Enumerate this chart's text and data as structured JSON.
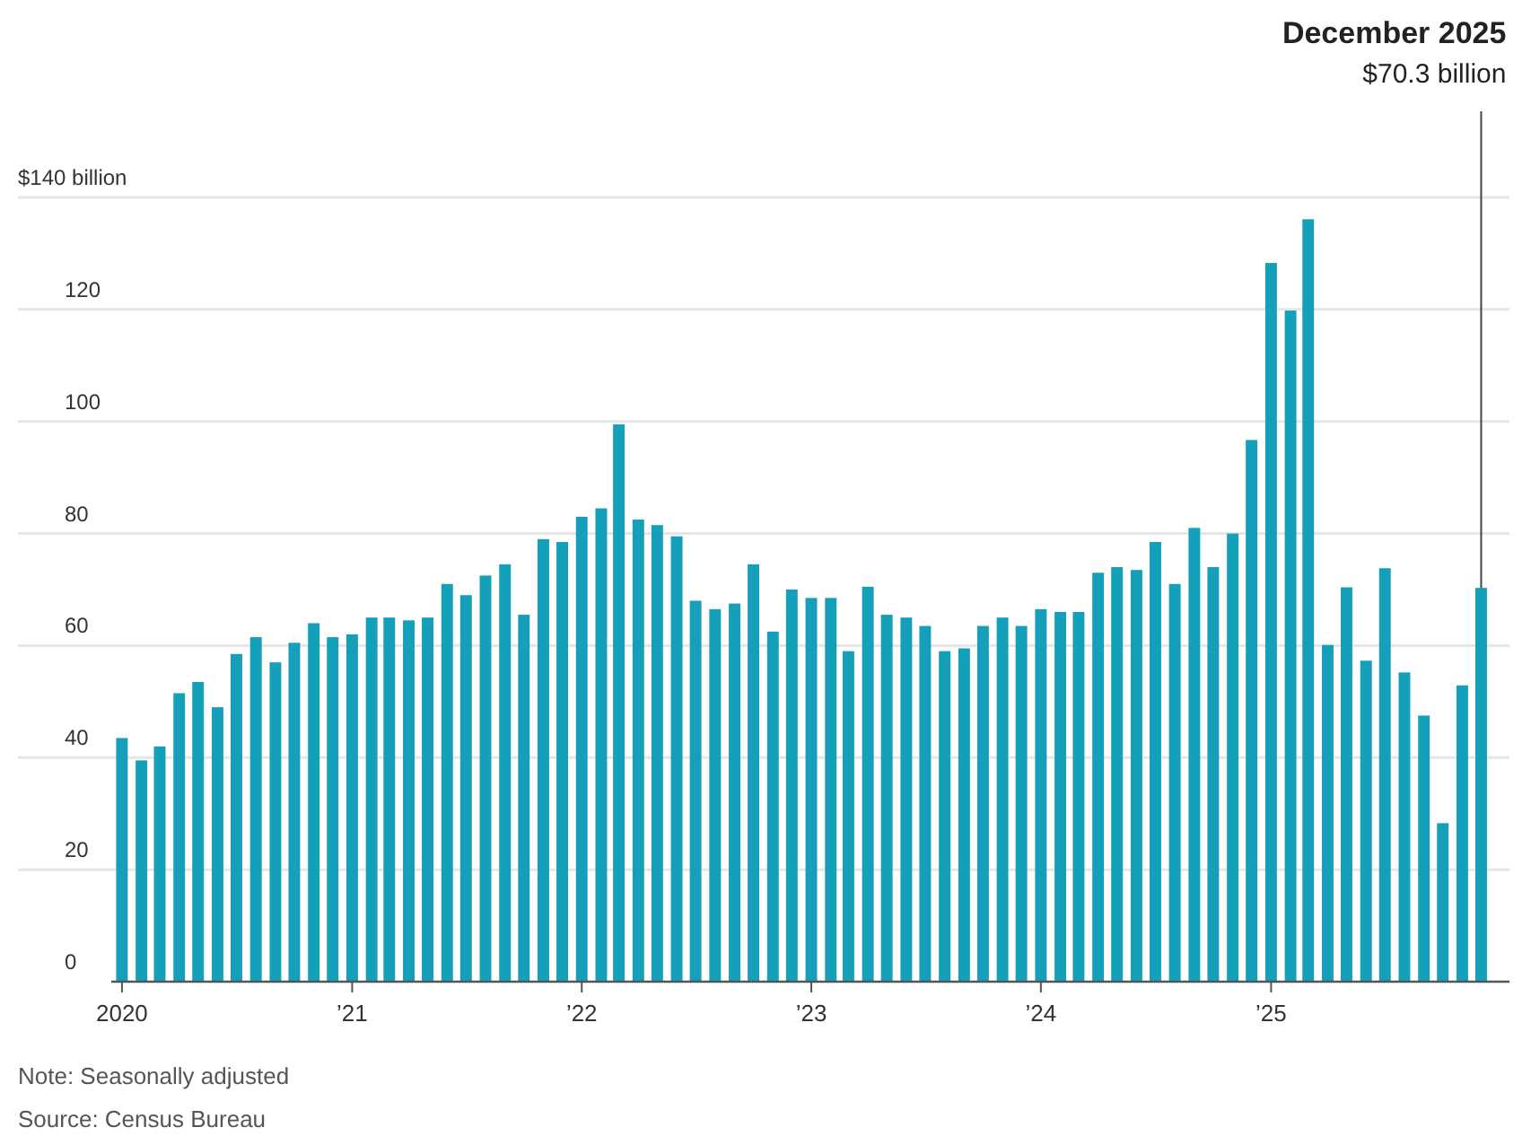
{
  "chart_data": {
    "type": "bar",
    "x": [
      "2020-01",
      "2020-02",
      "2020-03",
      "2020-04",
      "2020-05",
      "2020-06",
      "2020-07",
      "2020-08",
      "2020-09",
      "2020-10",
      "2020-11",
      "2020-12",
      "2021-01",
      "2021-02",
      "2021-03",
      "2021-04",
      "2021-05",
      "2021-06",
      "2021-07",
      "2021-08",
      "2021-09",
      "2021-10",
      "2021-11",
      "2021-12",
      "2022-01",
      "2022-02",
      "2022-03",
      "2022-04",
      "2022-05",
      "2022-06",
      "2022-07",
      "2022-08",
      "2022-09",
      "2022-10",
      "2022-11",
      "2022-12",
      "2023-01",
      "2023-02",
      "2023-03",
      "2023-04",
      "2023-05",
      "2023-06",
      "2023-07",
      "2023-08",
      "2023-09",
      "2023-10",
      "2023-11",
      "2023-12",
      "2024-01",
      "2024-02",
      "2024-03",
      "2024-04",
      "2024-05",
      "2024-06",
      "2024-07",
      "2024-08",
      "2024-09",
      "2024-10",
      "2024-11",
      "2024-12",
      "2025-01",
      "2025-02",
      "2025-03",
      "2025-04",
      "2025-05",
      "2025-06",
      "2025-07",
      "2025-08",
      "2025-09",
      "2025-10",
      "2025-11",
      "2025-12"
    ],
    "values": [
      43.5,
      39.5,
      42,
      51.5,
      53.5,
      49,
      58.5,
      61.5,
      57,
      60.5,
      64,
      61.5,
      62,
      65,
      65,
      64.5,
      65,
      71,
      69,
      72.5,
      74.5,
      65.5,
      79,
      78.5,
      83,
      84.5,
      99.5,
      82.5,
      81.5,
      79.5,
      68,
      66.5,
      67.5,
      74.5,
      62.5,
      70,
      68.5,
      68.5,
      59,
      70.5,
      65.5,
      65,
      63.5,
      59,
      59.5,
      63.5,
      65,
      63.5,
      66.5,
      66,
      66,
      73,
      74,
      73.5,
      78.5,
      71,
      81,
      74,
      80,
      96.7,
      128.3,
      119.8,
      136.1,
      60.1,
      70.4,
      57.3,
      73.8,
      55.2,
      47.5,
      28.3,
      52.9,
      70.3
    ],
    "color": "#14a0b8",
    "xlim": [
      "2019-12-15",
      "2026-01-15"
    ],
    "xticks": [
      {
        "value": "2020-01",
        "label": "2020"
      },
      {
        "value": "2021-01",
        "label": "’21"
      },
      {
        "value": "2022-01",
        "label": "’22"
      },
      {
        "value": "2023-01",
        "label": "’23"
      },
      {
        "value": "2024-01",
        "label": "’24"
      },
      {
        "value": "2025-01",
        "label": "’25"
      }
    ],
    "ylim": [
      0,
      140
    ],
    "yticks": [
      0,
      20,
      40,
      60,
      80,
      100,
      120,
      {
        "value": 140,
        "label": "$140 billion"
      }
    ],
    "grid": "y",
    "annotations": [
      "December 2025",
      {
        "text": "$70.3 billion",
        "x": "2025-12",
        "y": 70.3
      },
      "Note: Seasonally adjusted",
      "Source: Census Bureau"
    ]
  }
}
